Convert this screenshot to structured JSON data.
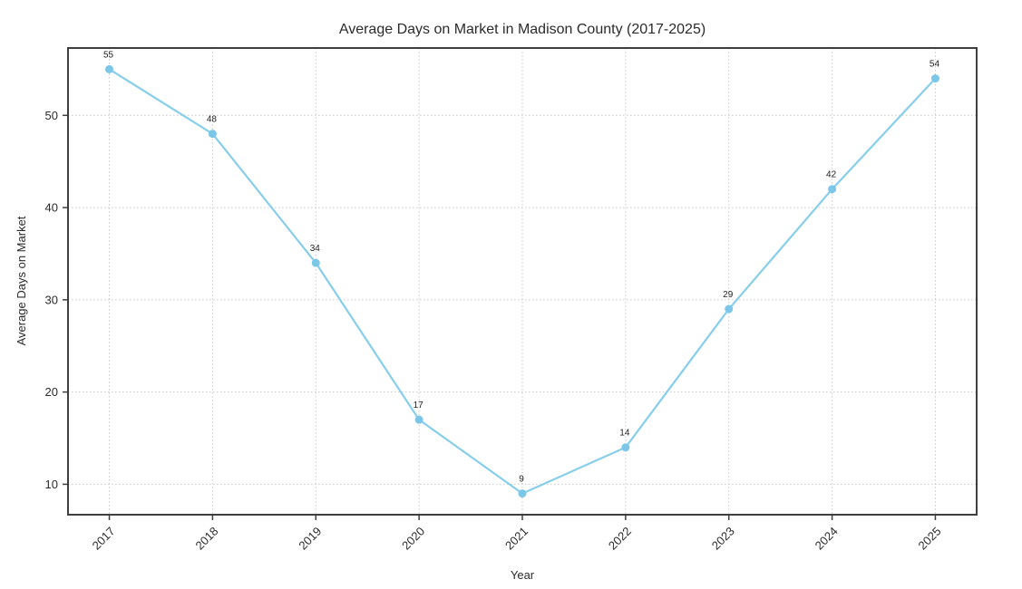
{
  "chart_data": {
    "type": "line",
    "title": "Average Days on Market in Madison County (2017-2025)",
    "xlabel": "Year",
    "ylabel": "Average Days on Market",
    "x": [
      2017,
      2018,
      2019,
      2020,
      2021,
      2022,
      2023,
      2024,
      2025
    ],
    "values": [
      55,
      48,
      34,
      17,
      9,
      14,
      29,
      42,
      54
    ],
    "yticks": [
      10,
      20,
      30,
      40,
      50
    ],
    "xlim": [
      2016.6,
      2025.4
    ],
    "ylim": [
      6.7,
      57.3
    ],
    "grid": true,
    "grid_style": "dotted",
    "legend": "none",
    "point_labels_shown": true,
    "colors": {
      "line": "#87CEEB",
      "marker": "#7CC6E8",
      "grid": "#c9c9c9",
      "axis": "#3f3f3f",
      "text": "#2b2b2b"
    }
  }
}
